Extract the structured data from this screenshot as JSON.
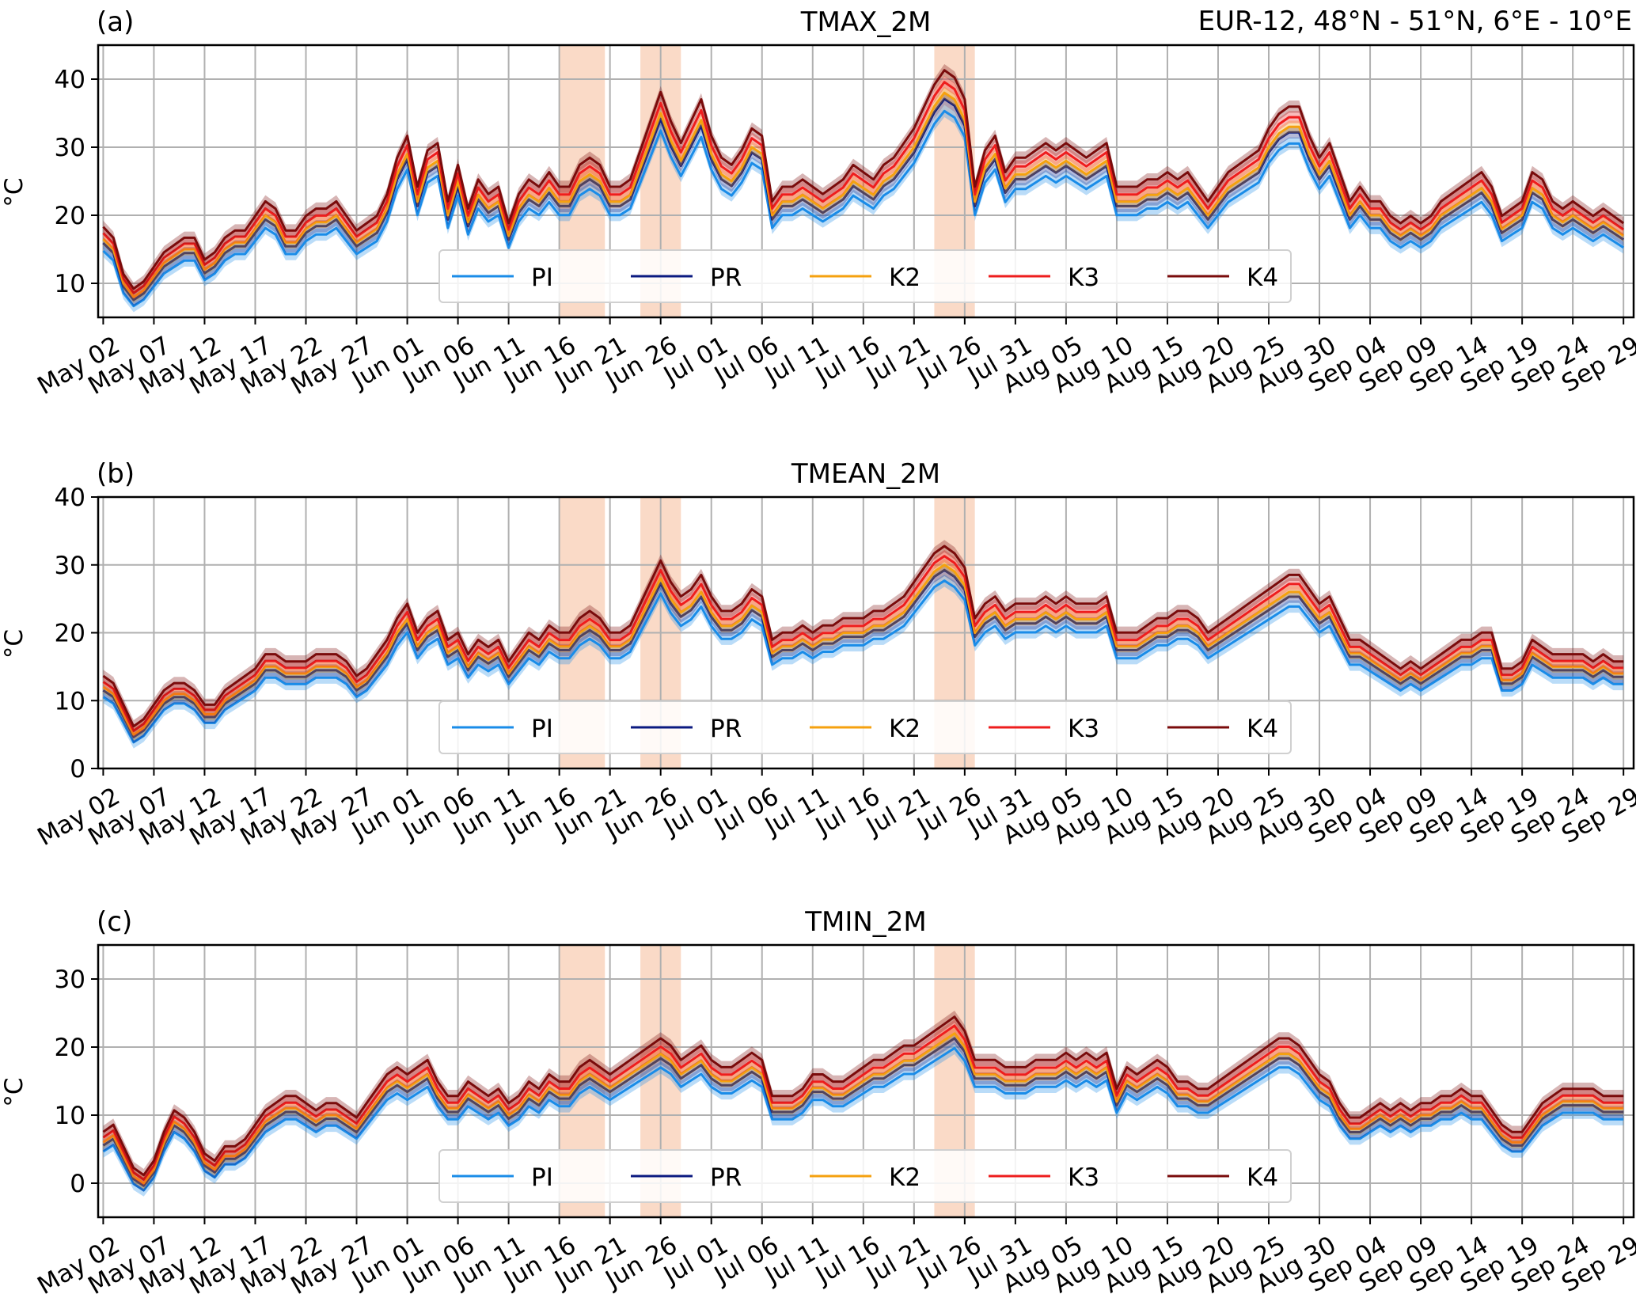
{
  "figure": {
    "region_label": "EUR-12, 48°N - 51°N, 6°E - 10°E",
    "legend": [
      {
        "key": "PI",
        "label": "PI",
        "color": "#1a8ce8"
      },
      {
        "key": "PR",
        "label": "PR",
        "color": "#0b1a80"
      },
      {
        "key": "K2",
        "label": "K2",
        "color": "#f5a10f"
      },
      {
        "key": "K3",
        "label": "K3",
        "color": "#ee1d1d"
      },
      {
        "key": "K4",
        "label": "K4",
        "color": "#7a0b0b"
      }
    ],
    "shade_color": "#f8cdb4"
  },
  "chart_data": [
    {
      "type": "line",
      "panel": "(a)",
      "title": "TMAX_2M",
      "ylabel": "°C",
      "ylim": [
        5,
        45
      ],
      "yticks": [
        10,
        20,
        30,
        40
      ],
      "xlim": [
        -0.5,
        151
      ],
      "xtick_positions": [
        0,
        5,
        10,
        15,
        20,
        25,
        30,
        35,
        40,
        45,
        50,
        55,
        60,
        65,
        70,
        75,
        80,
        85,
        90,
        95,
        100,
        105,
        110,
        115,
        120,
        125,
        130,
        135,
        140,
        145,
        150
      ],
      "xtick_labels": [
        "May 02",
        "May 07",
        "May 12",
        "May 17",
        "May 22",
        "May 27",
        "Jun 01",
        "Jun 06",
        "Jun 11",
        "Jun 16",
        "Jun 21",
        "Jun 26",
        "Jul 01",
        "Jul 06",
        "Jul 11",
        "Jul 16",
        "Jul 21",
        "Jul 26",
        "Jul 31",
        "Aug 05",
        "Aug 10",
        "Aug 15",
        "Aug 20",
        "Aug 25",
        "Aug 30",
        "Sep 04",
        "Sep 09",
        "Sep 14",
        "Sep 19",
        "Sep 24",
        "Sep 29"
      ],
      "shaded_ranges": [
        [
          45,
          49.5
        ],
        [
          53,
          57
        ],
        [
          82,
          86
        ]
      ],
      "x_start": 0,
      "x_step": 1,
      "base_series": [
        16.5,
        15,
        10,
        8,
        9,
        11,
        13,
        14,
        15,
        15,
        12,
        13,
        15,
        16,
        16,
        18,
        20,
        19,
        16,
        16,
        18,
        19,
        19,
        20,
        18,
        16,
        17,
        18,
        21,
        26,
        29,
        22,
        27,
        28,
        20,
        25,
        19,
        23,
        21,
        22,
        17,
        21,
        23,
        22,
        24,
        22,
        22,
        25,
        26,
        25,
        22,
        22,
        23,
        27,
        31,
        35,
        31,
        28,
        31,
        34,
        29,
        26,
        25,
        27,
        30,
        29,
        20,
        22,
        22,
        23,
        22,
        21,
        22,
        23,
        25,
        24,
        23,
        25,
        26,
        28,
        30,
        33,
        36,
        38,
        37,
        34,
        22,
        27,
        29,
        24,
        26,
        26,
        27,
        28,
        27,
        28,
        27,
        26,
        27,
        28,
        22,
        22,
        22,
        23,
        23,
        24,
        23,
        24,
        22,
        20,
        22,
        24,
        25,
        26,
        27,
        30,
        32,
        33,
        33,
        29,
        26,
        28,
        24,
        20,
        22,
        20,
        20,
        18,
        17,
        18,
        17,
        18,
        20,
        21,
        22,
        23,
        24,
        22,
        18,
        19,
        20,
        24,
        23,
        20,
        19,
        20,
        19,
        18,
        19,
        18,
        17
      ],
      "series": [
        {
          "name": "PI",
          "offsets": [
            -1.2,
            -3.0
          ]
        },
        {
          "name": "PR",
          "offsets": [
            -0.4,
            -1.0
          ]
        },
        {
          "name": "K2",
          "offsets": [
            0.0,
            0.0
          ]
        },
        {
          "name": "K3",
          "offsets": [
            0.5,
            1.8
          ]
        },
        {
          "name": "K4",
          "offsets": [
            1.0,
            3.8
          ]
        }
      ]
    },
    {
      "type": "line",
      "panel": "(b)",
      "title": "TMEAN_2M",
      "ylabel": "°C",
      "ylim": [
        0,
        40
      ],
      "yticks": [
        0,
        10,
        20,
        30,
        40
      ],
      "xlim": [
        -0.5,
        151
      ],
      "xtick_positions": [
        0,
        5,
        10,
        15,
        20,
        25,
        30,
        35,
        40,
        45,
        50,
        55,
        60,
        65,
        70,
        75,
        80,
        85,
        90,
        95,
        100,
        105,
        110,
        115,
        120,
        125,
        130,
        135,
        140,
        145,
        150
      ],
      "xtick_labels": [
        "May 02",
        "May 07",
        "May 12",
        "May 17",
        "May 22",
        "May 27",
        "Jun 01",
        "Jun 06",
        "Jun 11",
        "Jun 16",
        "Jun 21",
        "Jun 26",
        "Jul 01",
        "Jul 06",
        "Jul 11",
        "Jul 16",
        "Jul 21",
        "Jul 26",
        "Jul 31",
        "Aug 05",
        "Aug 10",
        "Aug 15",
        "Aug 20",
        "Aug 25",
        "Aug 30",
        "Sep 04",
        "Sep 09",
        "Sep 14",
        "Sep 19",
        "Sep 24",
        "Sep 29"
      ],
      "shaded_ranges": [
        [
          45,
          49.5
        ],
        [
          53,
          57
        ],
        [
          82,
          86
        ]
      ],
      "x_start": 0,
      "x_step": 1,
      "base_series": [
        12,
        11,
        8,
        5,
        6,
        8,
        10,
        11,
        11,
        10,
        8,
        8,
        10,
        11,
        12,
        13,
        15,
        15,
        14,
        14,
        14,
        15,
        15,
        15,
        14,
        12,
        13,
        15,
        17,
        20,
        22,
        18,
        20,
        21,
        17,
        18,
        15,
        17,
        16,
        17,
        14,
        16,
        18,
        17,
        19,
        18,
        18,
        20,
        21,
        20,
        18,
        18,
        19,
        22,
        25,
        28,
        25,
        23,
        24,
        26,
        23,
        21,
        21,
        22,
        24,
        23,
        17,
        18,
        18,
        19,
        18,
        19,
        19,
        20,
        20,
        20,
        21,
        21,
        22,
        23,
        25,
        27,
        29,
        30,
        29,
        27,
        20,
        22,
        23,
        21,
        22,
        22,
        22,
        23,
        22,
        23,
        22,
        22,
        22,
        23,
        18,
        18,
        18,
        19,
        20,
        20,
        21,
        21,
        20,
        18,
        19,
        20,
        21,
        22,
        23,
        24,
        25,
        26,
        26,
        24,
        22,
        23,
        20,
        17,
        17,
        16,
        15,
        14,
        13,
        14,
        13,
        14,
        15,
        16,
        17,
        17,
        18,
        18,
        13,
        13,
        14,
        17,
        16,
        15,
        15,
        15,
        15,
        14,
        15,
        14,
        14
      ],
      "series": [
        {
          "name": "PI",
          "offsets": [
            -0.9,
            -2.8
          ]
        },
        {
          "name": "PR",
          "offsets": [
            -0.3,
            -0.9
          ]
        },
        {
          "name": "K2",
          "offsets": [
            0.0,
            0.0
          ]
        },
        {
          "name": "K3",
          "offsets": [
            0.4,
            1.6
          ]
        },
        {
          "name": "K4",
          "offsets": [
            0.9,
            3.4
          ]
        }
      ]
    },
    {
      "type": "line",
      "panel": "(c)",
      "title": "TMIN_2M",
      "ylabel": "°C",
      "ylim": [
        -5,
        35
      ],
      "yticks": [
        0,
        10,
        20,
        30
      ],
      "xlim": [
        -0.5,
        151
      ],
      "xtick_positions": [
        0,
        5,
        10,
        15,
        20,
        25,
        30,
        35,
        40,
        45,
        50,
        55,
        60,
        65,
        70,
        75,
        80,
        85,
        90,
        95,
        100,
        105,
        110,
        115,
        120,
        125,
        130,
        135,
        140,
        145,
        150
      ],
      "xtick_labels": [
        "May 02",
        "May 07",
        "May 12",
        "May 17",
        "May 22",
        "May 27",
        "Jun 01",
        "Jun 06",
        "Jun 11",
        "Jun 16",
        "Jun 21",
        "Jun 26",
        "Jul 01",
        "Jul 06",
        "Jul 11",
        "Jul 16",
        "Jul 21",
        "Jul 26",
        "Jul 31",
        "Aug 05",
        "Aug 10",
        "Aug 15",
        "Aug 20",
        "Aug 25",
        "Aug 30",
        "Sep 04",
        "Sep 09",
        "Sep 14",
        "Sep 19",
        "Sep 24",
        "Sep 29"
      ],
      "shaded_ranges": [
        [
          45,
          49.5
        ],
        [
          53,
          57
        ],
        [
          82,
          86
        ]
      ],
      "x_start": 0,
      "x_step": 1,
      "base_series": [
        6,
        7,
        4,
        1,
        0,
        2,
        6,
        9,
        8,
        6,
        3,
        2,
        4,
        4,
        5,
        7,
        9,
        10,
        11,
        11,
        10,
        9,
        10,
        10,
        9,
        8,
        10,
        12,
        14,
        15,
        14,
        15,
        16,
        13,
        11,
        11,
        13,
        12,
        11,
        12,
        10,
        11,
        13,
        12,
        14,
        13,
        13,
        15,
        16,
        15,
        14,
        15,
        16,
        17,
        18,
        19,
        18,
        16,
        17,
        18,
        16,
        15,
        15,
        16,
        17,
        16,
        11,
        11,
        11,
        12,
        14,
        14,
        13,
        13,
        14,
        15,
        16,
        16,
        17,
        18,
        18,
        19,
        20,
        21,
        22,
        20,
        16,
        16,
        16,
        15,
        15,
        15,
        16,
        16,
        16,
        17,
        16,
        17,
        16,
        17,
        12,
        15,
        14,
        15,
        16,
        15,
        13,
        13,
        12,
        12,
        13,
        14,
        15,
        16,
        17,
        18,
        19,
        19,
        18,
        16,
        14,
        13,
        10,
        8,
        8,
        9,
        10,
        9,
        10,
        9,
        10,
        10,
        11,
        11,
        12,
        11,
        11,
        9,
        7,
        6,
        6,
        8,
        10,
        11,
        12,
        12,
        12,
        12,
        11,
        11,
        11
      ],
      "series": [
        {
          "name": "PI",
          "offsets": [
            -0.8,
            -2.8
          ]
        },
        {
          "name": "PR",
          "offsets": [
            -0.3,
            -0.9
          ]
        },
        {
          "name": "K2",
          "offsets": [
            0.0,
            0.0
          ]
        },
        {
          "name": "K3",
          "offsets": [
            0.4,
            1.5
          ]
        },
        {
          "name": "K4",
          "offsets": [
            0.9,
            3.2
          ]
        }
      ]
    }
  ]
}
